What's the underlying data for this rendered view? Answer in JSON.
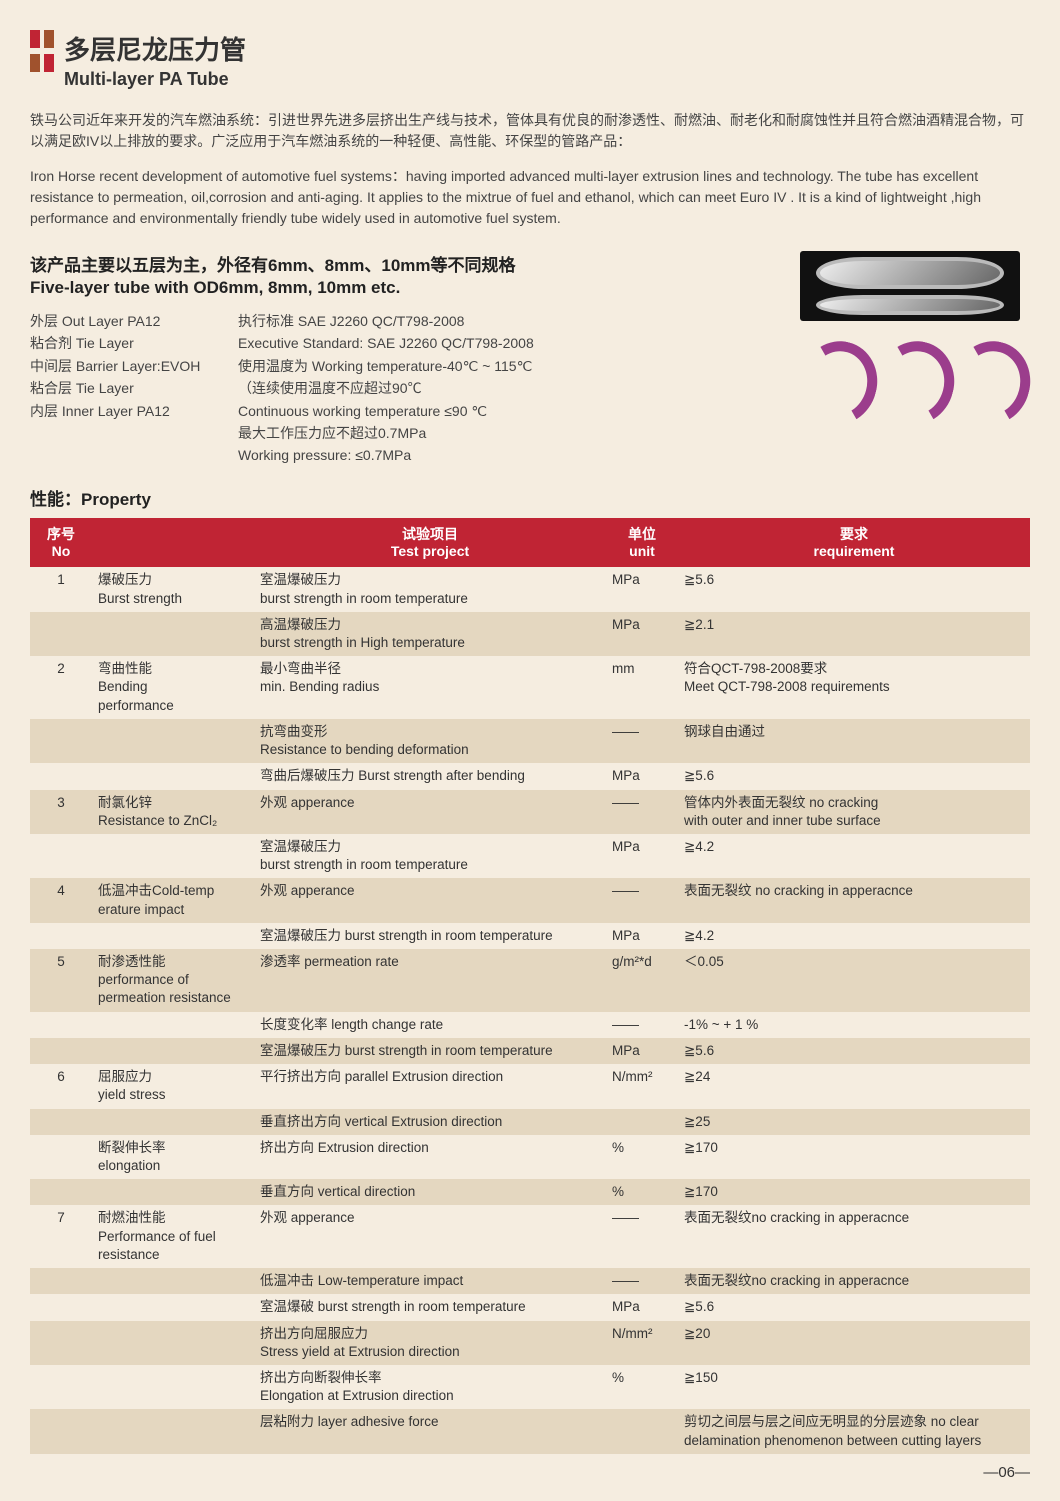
{
  "colors": {
    "page_bg": "#f5ede0",
    "header_red": "#c02434",
    "row_shade": "#e4d7c0",
    "text": "#333333",
    "arc_purple": "#9b3d8c",
    "arc_orange": "#d86b1f"
  },
  "title_cn": "多层尼龙压力管",
  "title_en": "Multi-layer PA Tube",
  "intro_cn": "铁马公司近年来开发的汽车燃油系统：引进世界先进多层挤出生产线与技术，管体具有优良的耐渗透性、耐燃油、耐老化和耐腐蚀性并且符合燃油酒精混合物，可以满足欧IV以上排放的要求。广泛应用于汽车燃油系统的一种轻便、高性能、环保型的管路产品：",
  "intro_en": "Iron Horse recent development of automotive fuel systems：having imported advanced multi-layer extrusion lines and technology. The tube has excellent resistance to permeation, oil,corrosion and anti-aging. It applies to the mixtrue of fuel and ethanol, which can meet Euro IV . It is a kind of lightweight ,high performance and environmentally friendly tube widely used in automotive fuel system.",
  "sub_cn": "该产品主要以五层为主，外径有6mm、8mm、10mm等不同规格",
  "sub_en": "Five-layer tube with OD6mm, 8mm, 10mm etc.",
  "layers": [
    "外层 Out Layer PA12",
    "粘合剂 Tie Layer",
    "中间层 Barrier Layer:EVOH",
    "粘合层 Tie Layer",
    "内层 Inner Layer PA12"
  ],
  "standards": [
    "执行标准 SAE J2260    QC/T798-2008",
    "Executive Standard: SAE J2260    QC/T798-2008",
    "使用温度为 Working temperature-40℃ ~ 115℃",
    "（连续使用温度不应超过90℃",
    "Continuous working temperature ≤90 ℃",
    "最大工作压力应不超过0.7MPa",
    "Working pressure: ≤0.7MPa"
  ],
  "prop_heading": "性能：Property",
  "table": {
    "headers": {
      "no": "序号 No",
      "name": "",
      "test": "试验项目\nTest project",
      "unit": "单位\nunit",
      "req": "要求\nrequirement"
    },
    "rows": [
      {
        "no": "1",
        "name": "爆破压力\nBurst strength",
        "test": "室温爆破压力\nburst strength in room temperature",
        "unit": "MPa",
        "req": "≧5.6",
        "shade": false
      },
      {
        "no": "",
        "name": "",
        "test": "高温爆破压力\nburst strength in High temperature",
        "unit": "MPa",
        "req": "≧2.1",
        "shade": true
      },
      {
        "no": "2",
        "name": "弯曲性能\nBending\nperformance",
        "test": "最小弯曲半径\nmin. Bending radius",
        "unit": "mm",
        "req": "符合QCT-798-2008要求\nMeet QCT-798-2008 requirements",
        "shade": false
      },
      {
        "no": "",
        "name": "",
        "test": "抗弯曲变形\nResistance to bending deformation",
        "unit": "——",
        "req": "钢球自由通过",
        "shade": true
      },
      {
        "no": "",
        "name": "",
        "test": "弯曲后爆破压力 Burst strength after bending",
        "unit": "MPa",
        "req": "≧5.6",
        "shade": false
      },
      {
        "no": "3",
        "name": "耐氯化锌\nResistance to ZnCl₂",
        "test": "外观 apperance",
        "unit": "——",
        "req": "管体内外表面无裂纹 no cracking\nwith outer and inner tube surface",
        "shade": true
      },
      {
        "no": "",
        "name": "",
        "test": "室温爆破压力\nburst strength in room temperature",
        "unit": "MPa",
        "req": "≧4.2",
        "shade": false
      },
      {
        "no": "4",
        "name": "低温冲击Cold-temp\nerature impact",
        "test": "外观 apperance",
        "unit": "——",
        "req": "表面无裂纹 no cracking in apperacnce",
        "shade": true
      },
      {
        "no": "",
        "name": "",
        "test": "室温爆破压力 burst strength in room temperature",
        "unit": "MPa",
        "req": "≧4.2",
        "shade": false
      },
      {
        "no": "5",
        "name": "耐渗透性能\nperformance of\npermeation resistance",
        "test": "渗透率 permeation rate",
        "unit": "g/m²*d",
        "req": "＜0.05",
        "shade": true
      },
      {
        "no": "",
        "name": "",
        "test": "长度变化率 length change rate",
        "unit": "——",
        "req": "-1% ~ + 1 %",
        "shade": false
      },
      {
        "no": "",
        "name": "",
        "test": "室温爆破压力 burst strength in room temperature",
        "unit": "MPa",
        "req": "≧5.6",
        "shade": true
      },
      {
        "no": "6",
        "name": "屈服应力\nyield stress",
        "test": "平行挤出方向 parallel Extrusion direction",
        "unit": "N/mm²",
        "req": "≧24",
        "shade": false
      },
      {
        "no": "",
        "name": "",
        "test": "垂直挤出方向 vertical Extrusion direction",
        "unit": "",
        "req": "≧25",
        "shade": true
      },
      {
        "no": "",
        "name": "断裂伸长率\nelongation",
        "test": "挤出方向 Extrusion direction",
        "unit": "%",
        "req": "≧170",
        "shade": false
      },
      {
        "no": "",
        "name": "",
        "test": "垂直方向 vertical direction",
        "unit": "%",
        "req": "≧170",
        "shade": true
      },
      {
        "no": "7",
        "name": "耐燃油性能\nPerformance of fuel\nresistance",
        "test": "外观 apperance",
        "unit": "——",
        "req": "表面无裂纹no cracking in apperacnce",
        "shade": false
      },
      {
        "no": "",
        "name": "",
        "test": "低温冲击 Low-temperature impact",
        "unit": "——",
        "req": "表面无裂纹no cracking in apperacnce",
        "shade": true
      },
      {
        "no": "",
        "name": "",
        "test": "室温爆破 burst strength in room temperature",
        "unit": "MPa",
        "req": "≧5.6",
        "shade": false
      },
      {
        "no": "",
        "name": "",
        "test": "挤出方向屈服应力\nStress yield at Extrusion direction",
        "unit": "N/mm²",
        "req": "≧20",
        "shade": true
      },
      {
        "no": "",
        "name": "",
        "test": "挤出方向断裂伸长率\nElongation at Extrusion direction",
        "unit": "%",
        "req": "≧150",
        "shade": false,
        "blankreq": true
      },
      {
        "no": "",
        "name": "",
        "test": "层粘附力 layer adhesive force",
        "unit": "",
        "req": "剪切之间层与层之间应无明显的分层迹象 no clear delamination phenomenon between cutting layers",
        "shade": true
      }
    ]
  },
  "page_num": "—06—"
}
